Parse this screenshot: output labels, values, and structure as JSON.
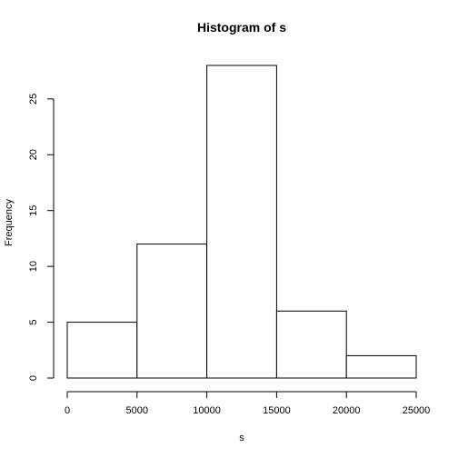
{
  "chart_data": {
    "type": "bar",
    "title": "Histogram of s",
    "xlabel": "s",
    "ylabel": "Frequency",
    "bins": [
      {
        "start": 0,
        "end": 5000,
        "count": 5
      },
      {
        "start": 5000,
        "end": 10000,
        "count": 12
      },
      {
        "start": 10000,
        "end": 15000,
        "count": 28
      },
      {
        "start": 15000,
        "end": 20000,
        "count": 6
      },
      {
        "start": 20000,
        "end": 25000,
        "count": 2
      }
    ],
    "xlim": [
      0,
      25000
    ],
    "ylim": [
      0,
      28
    ],
    "x_ticks": [
      "0",
      "5000",
      "10000",
      "15000",
      "20000",
      "25000"
    ],
    "y_ticks": [
      "0",
      "5",
      "10",
      "15",
      "20",
      "25"
    ],
    "grid": false
  }
}
